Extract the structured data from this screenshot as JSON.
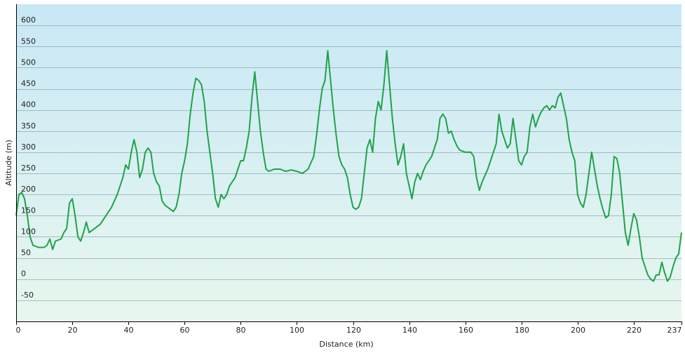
{
  "colors": {
    "plot_bg_top": "#c8e8f6",
    "plot_bg_bottom": "#e8f7ee",
    "line": "#1fa24a",
    "grid": "#7a8fa0",
    "axis": "#000000"
  },
  "chart_data": {
    "type": "line",
    "title": "",
    "xlabel": "Distance  (km)",
    "ylabel": "Altitude (m)",
    "xlim": [
      0,
      237
    ],
    "ylim": [
      -100,
      650
    ],
    "grid": "horizontal",
    "x_ticks": [
      0,
      20,
      40,
      60,
      80,
      100,
      120,
      140,
      160,
      180,
      200,
      220,
      237
    ],
    "y_ticks": [
      -50,
      0,
      50,
      100,
      150,
      200,
      250,
      300,
      350,
      400,
      450,
      500,
      550,
      600
    ],
    "x_tick_labels": [
      "0",
      "20",
      "40",
      "60",
      "80",
      "100",
      "120",
      "140",
      "160",
      "180",
      "200",
      "220",
      "237"
    ],
    "y_tick_labels": [
      "-50",
      "0",
      "50",
      "100",
      "150",
      "200",
      "250",
      "300",
      "350",
      "400",
      "450",
      "500",
      "550",
      "600"
    ],
    "series": [
      {
        "points": [
          [
            0,
            150
          ],
          [
            1,
            200
          ],
          [
            2,
            205
          ],
          [
            3,
            190
          ],
          [
            4,
            150
          ],
          [
            5,
            100
          ],
          [
            6,
            80
          ],
          [
            8,
            75
          ],
          [
            10,
            75
          ],
          [
            11,
            80
          ],
          [
            12,
            95
          ],
          [
            13,
            70
          ],
          [
            14,
            90
          ],
          [
            16,
            95
          ],
          [
            17,
            110
          ],
          [
            18,
            120
          ],
          [
            19,
            180
          ],
          [
            20,
            190
          ],
          [
            21,
            150
          ],
          [
            22,
            100
          ],
          [
            23,
            90
          ],
          [
            24,
            110
          ],
          [
            25,
            135
          ],
          [
            26,
            110
          ],
          [
            27,
            115
          ],
          [
            28,
            120
          ],
          [
            30,
            130
          ],
          [
            32,
            150
          ],
          [
            34,
            170
          ],
          [
            36,
            200
          ],
          [
            38,
            240
          ],
          [
            39,
            270
          ],
          [
            40,
            260
          ],
          [
            41,
            300
          ],
          [
            42,
            330
          ],
          [
            43,
            300
          ],
          [
            44,
            240
          ],
          [
            45,
            260
          ],
          [
            46,
            300
          ],
          [
            47,
            310
          ],
          [
            48,
            300
          ],
          [
            49,
            250
          ],
          [
            50,
            230
          ],
          [
            51,
            220
          ],
          [
            52,
            185
          ],
          [
            53,
            175
          ],
          [
            54,
            170
          ],
          [
            55,
            165
          ],
          [
            56,
            160
          ],
          [
            57,
            170
          ],
          [
            58,
            200
          ],
          [
            59,
            250
          ],
          [
            60,
            280
          ],
          [
            61,
            320
          ],
          [
            62,
            390
          ],
          [
            63,
            440
          ],
          [
            64,
            475
          ],
          [
            65,
            470
          ],
          [
            66,
            460
          ],
          [
            67,
            420
          ],
          [
            68,
            350
          ],
          [
            69,
            300
          ],
          [
            70,
            250
          ],
          [
            71,
            190
          ],
          [
            72,
            170
          ],
          [
            73,
            200
          ],
          [
            74,
            190
          ],
          [
            75,
            200
          ],
          [
            76,
            220
          ],
          [
            77,
            230
          ],
          [
            78,
            240
          ],
          [
            79,
            260
          ],
          [
            80,
            280
          ],
          [
            81,
            280
          ],
          [
            82,
            310
          ],
          [
            83,
            350
          ],
          [
            84,
            430
          ],
          [
            85,
            490
          ],
          [
            86,
            420
          ],
          [
            87,
            350
          ],
          [
            88,
            300
          ],
          [
            89,
            260
          ],
          [
            90,
            255
          ],
          [
            92,
            260
          ],
          [
            94,
            260
          ],
          [
            96,
            255
          ],
          [
            98,
            258
          ],
          [
            100,
            255
          ],
          [
            102,
            250
          ],
          [
            104,
            260
          ],
          [
            106,
            290
          ],
          [
            107,
            340
          ],
          [
            108,
            400
          ],
          [
            109,
            450
          ],
          [
            110,
            470
          ],
          [
            111,
            540
          ],
          [
            112,
            470
          ],
          [
            113,
            400
          ],
          [
            114,
            340
          ],
          [
            115,
            290
          ],
          [
            116,
            270
          ],
          [
            117,
            260
          ],
          [
            118,
            240
          ],
          [
            119,
            200
          ],
          [
            120,
            170
          ],
          [
            121,
            165
          ],
          [
            122,
            170
          ],
          [
            123,
            190
          ],
          [
            124,
            250
          ],
          [
            125,
            310
          ],
          [
            126,
            330
          ],
          [
            127,
            300
          ],
          [
            128,
            380
          ],
          [
            129,
            420
          ],
          [
            130,
            400
          ],
          [
            131,
            460
          ],
          [
            132,
            540
          ],
          [
            133,
            460
          ],
          [
            134,
            380
          ],
          [
            135,
            320
          ],
          [
            136,
            270
          ],
          [
            137,
            290
          ],
          [
            138,
            320
          ],
          [
            139,
            250
          ],
          [
            140,
            220
          ],
          [
            141,
            190
          ],
          [
            142,
            230
          ],
          [
            143,
            250
          ],
          [
            144,
            235
          ],
          [
            145,
            255
          ],
          [
            146,
            270
          ],
          [
            148,
            290
          ],
          [
            150,
            330
          ],
          [
            151,
            380
          ],
          [
            152,
            390
          ],
          [
            153,
            380
          ],
          [
            154,
            345
          ],
          [
            155,
            350
          ],
          [
            156,
            330
          ],
          [
            157,
            315
          ],
          [
            158,
            305
          ],
          [
            160,
            300
          ],
          [
            162,
            300
          ],
          [
            163,
            290
          ],
          [
            164,
            240
          ],
          [
            165,
            210
          ],
          [
            166,
            230
          ],
          [
            168,
            260
          ],
          [
            169,
            280
          ],
          [
            170,
            300
          ],
          [
            171,
            320
          ],
          [
            172,
            390
          ],
          [
            173,
            350
          ],
          [
            174,
            330
          ],
          [
            175,
            310
          ],
          [
            176,
            320
          ],
          [
            177,
            380
          ],
          [
            178,
            330
          ],
          [
            179,
            280
          ],
          [
            180,
            270
          ],
          [
            181,
            290
          ],
          [
            182,
            300
          ],
          [
            183,
            360
          ],
          [
            184,
            390
          ],
          [
            185,
            360
          ],
          [
            186,
            380
          ],
          [
            187,
            395
          ],
          [
            188,
            405
          ],
          [
            189,
            410
          ],
          [
            190,
            400
          ],
          [
            191,
            410
          ],
          [
            192,
            405
          ],
          [
            193,
            430
          ],
          [
            194,
            440
          ],
          [
            195,
            410
          ],
          [
            196,
            380
          ],
          [
            197,
            330
          ],
          [
            198,
            300
          ],
          [
            199,
            280
          ],
          [
            200,
            200
          ],
          [
            201,
            180
          ],
          [
            202,
            170
          ],
          [
            203,
            200
          ],
          [
            204,
            250
          ],
          [
            205,
            300
          ],
          [
            206,
            260
          ],
          [
            207,
            220
          ],
          [
            208,
            190
          ],
          [
            209,
            165
          ],
          [
            210,
            145
          ],
          [
            211,
            150
          ],
          [
            212,
            200
          ],
          [
            213,
            290
          ],
          [
            214,
            285
          ],
          [
            215,
            250
          ],
          [
            216,
            180
          ],
          [
            217,
            110
          ],
          [
            218,
            80
          ],
          [
            219,
            120
          ],
          [
            220,
            155
          ],
          [
            221,
            140
          ],
          [
            222,
            100
          ],
          [
            223,
            50
          ],
          [
            224,
            30
          ],
          [
            225,
            10
          ],
          [
            226,
            0
          ],
          [
            227,
            -5
          ],
          [
            228,
            10
          ],
          [
            229,
            10
          ],
          [
            230,
            40
          ],
          [
            231,
            15
          ],
          [
            232,
            -5
          ],
          [
            233,
            5
          ],
          [
            234,
            30
          ],
          [
            235,
            50
          ],
          [
            236,
            60
          ],
          [
            237,
            110
          ]
        ]
      }
    ]
  }
}
